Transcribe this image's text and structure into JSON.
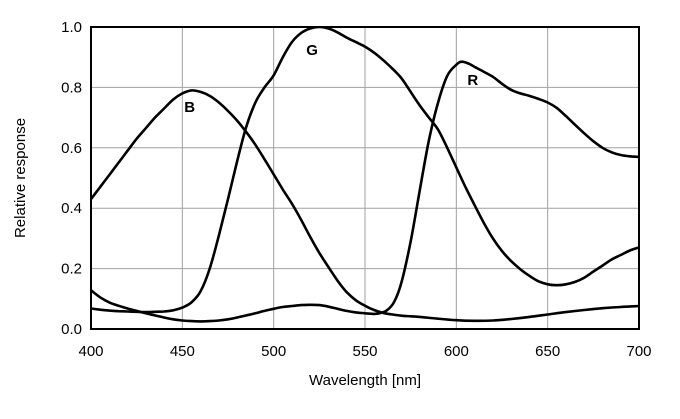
{
  "figure": {
    "background": "#ffffff",
    "frame_color": "#000000",
    "grid_color": "#a0a0a0",
    "curve_color": "#000000"
  },
  "chart_data": {
    "type": "line",
    "title": "",
    "xlabel": "Wavelength [nm]",
    "ylabel": "Relative response",
    "xlim": [
      400,
      700
    ],
    "ylim": [
      0.0,
      1.0
    ],
    "x_ticks": [
      400,
      450,
      500,
      550,
      600,
      650,
      700
    ],
    "y_ticks": [
      0.0,
      0.2,
      0.4,
      0.6,
      0.8,
      1.0
    ],
    "grid": true,
    "legend_position": "inline-curve-labels",
    "curve_labels": [
      {
        "text": "B",
        "x": 454,
        "y": 0.735
      },
      {
        "text": "G",
        "x": 521,
        "y": 0.924
      },
      {
        "text": "R",
        "x": 609,
        "y": 0.824
      }
    ],
    "series": [
      {
        "name": "B",
        "points": [
          [
            400,
            0.43
          ],
          [
            405,
            0.47
          ],
          [
            410,
            0.51
          ],
          [
            415,
            0.55
          ],
          [
            420,
            0.59
          ],
          [
            425,
            0.63
          ],
          [
            430,
            0.665
          ],
          [
            435,
            0.7
          ],
          [
            440,
            0.73
          ],
          [
            445,
            0.76
          ],
          [
            450,
            0.78
          ],
          [
            455,
            0.79
          ],
          [
            460,
            0.785
          ],
          [
            465,
            0.772
          ],
          [
            470,
            0.75
          ],
          [
            475,
            0.722
          ],
          [
            480,
            0.69
          ],
          [
            485,
            0.652
          ],
          [
            490,
            0.61
          ],
          [
            495,
            0.562
          ],
          [
            500,
            0.512
          ],
          [
            505,
            0.462
          ],
          [
            510,
            0.415
          ],
          [
            515,
            0.362
          ],
          [
            520,
            0.305
          ],
          [
            525,
            0.252
          ],
          [
            530,
            0.205
          ],
          [
            535,
            0.16
          ],
          [
            540,
            0.122
          ],
          [
            545,
            0.095
          ],
          [
            550,
            0.077
          ],
          [
            555,
            0.063
          ],
          [
            560,
            0.053
          ],
          [
            565,
            0.048
          ],
          [
            570,
            0.044
          ],
          [
            575,
            0.042
          ],
          [
            580,
            0.04
          ],
          [
            590,
            0.034
          ],
          [
            600,
            0.029
          ],
          [
            610,
            0.027
          ],
          [
            620,
            0.028
          ],
          [
            630,
            0.033
          ],
          [
            640,
            0.04
          ],
          [
            650,
            0.048
          ],
          [
            660,
            0.056
          ],
          [
            670,
            0.063
          ],
          [
            680,
            0.069
          ],
          [
            690,
            0.073
          ],
          [
            700,
            0.076
          ]
        ]
      },
      {
        "name": "G",
        "points": [
          [
            400,
            0.068
          ],
          [
            405,
            0.064
          ],
          [
            410,
            0.061
          ],
          [
            415,
            0.059
          ],
          [
            420,
            0.058
          ],
          [
            425,
            0.057
          ],
          [
            430,
            0.056
          ],
          [
            435,
            0.057
          ],
          [
            440,
            0.058
          ],
          [
            445,
            0.062
          ],
          [
            450,
            0.071
          ],
          [
            455,
            0.088
          ],
          [
            460,
            0.125
          ],
          [
            465,
            0.2
          ],
          [
            470,
            0.31
          ],
          [
            475,
            0.43
          ],
          [
            480,
            0.555
          ],
          [
            485,
            0.67
          ],
          [
            490,
            0.75
          ],
          [
            495,
            0.8
          ],
          [
            500,
            0.84
          ],
          [
            505,
            0.9
          ],
          [
            510,
            0.95
          ],
          [
            515,
            0.98
          ],
          [
            520,
            0.995
          ],
          [
            525,
            1.0
          ],
          [
            530,
            0.995
          ],
          [
            535,
            0.982
          ],
          [
            540,
            0.965
          ],
          [
            545,
            0.95
          ],
          [
            550,
            0.935
          ],
          [
            555,
            0.915
          ],
          [
            560,
            0.89
          ],
          [
            565,
            0.862
          ],
          [
            570,
            0.83
          ],
          [
            575,
            0.785
          ],
          [
            580,
            0.74
          ],
          [
            585,
            0.7
          ],
          [
            590,
            0.66
          ],
          [
            595,
            0.6
          ],
          [
            600,
            0.535
          ],
          [
            605,
            0.47
          ],
          [
            610,
            0.41
          ],
          [
            615,
            0.352
          ],
          [
            620,
            0.3
          ],
          [
            625,
            0.258
          ],
          [
            630,
            0.225
          ],
          [
            635,
            0.198
          ],
          [
            640,
            0.176
          ],
          [
            645,
            0.158
          ],
          [
            650,
            0.148
          ],
          [
            655,
            0.145
          ],
          [
            660,
            0.148
          ],
          [
            665,
            0.156
          ],
          [
            670,
            0.17
          ],
          [
            675,
            0.19
          ],
          [
            680,
            0.21
          ],
          [
            685,
            0.23
          ],
          [
            690,
            0.245
          ],
          [
            695,
            0.26
          ],
          [
            700,
            0.27
          ]
        ]
      },
      {
        "name": "R",
        "points": [
          [
            400,
            0.128
          ],
          [
            405,
            0.105
          ],
          [
            410,
            0.088
          ],
          [
            415,
            0.077
          ],
          [
            420,
            0.068
          ],
          [
            425,
            0.06
          ],
          [
            430,
            0.052
          ],
          [
            435,
            0.045
          ],
          [
            440,
            0.038
          ],
          [
            445,
            0.032
          ],
          [
            450,
            0.028
          ],
          [
            455,
            0.026
          ],
          [
            460,
            0.025
          ],
          [
            465,
            0.026
          ],
          [
            470,
            0.028
          ],
          [
            475,
            0.032
          ],
          [
            480,
            0.038
          ],
          [
            485,
            0.045
          ],
          [
            490,
            0.052
          ],
          [
            495,
            0.06
          ],
          [
            500,
            0.067
          ],
          [
            505,
            0.073
          ],
          [
            510,
            0.076
          ],
          [
            515,
            0.079
          ],
          [
            520,
            0.08
          ],
          [
            525,
            0.079
          ],
          [
            530,
            0.074
          ],
          [
            535,
            0.067
          ],
          [
            540,
            0.06
          ],
          [
            545,
            0.055
          ],
          [
            550,
            0.052
          ],
          [
            555,
            0.05
          ],
          [
            558,
            0.052
          ],
          [
            562,
            0.062
          ],
          [
            566,
            0.09
          ],
          [
            570,
            0.155
          ],
          [
            575,
            0.29
          ],
          [
            580,
            0.46
          ],
          [
            585,
            0.625
          ],
          [
            590,
            0.75
          ],
          [
            595,
            0.838
          ],
          [
            600,
            0.875
          ],
          [
            603,
            0.885
          ],
          [
            607,
            0.878
          ],
          [
            610,
            0.868
          ],
          [
            615,
            0.852
          ],
          [
            620,
            0.835
          ],
          [
            625,
            0.812
          ],
          [
            630,
            0.792
          ],
          [
            635,
            0.78
          ],
          [
            640,
            0.772
          ],
          [
            645,
            0.762
          ],
          [
            650,
            0.75
          ],
          [
            655,
            0.732
          ],
          [
            660,
            0.705
          ],
          [
            665,
            0.676
          ],
          [
            670,
            0.648
          ],
          [
            675,
            0.622
          ],
          [
            680,
            0.6
          ],
          [
            685,
            0.585
          ],
          [
            690,
            0.576
          ],
          [
            695,
            0.572
          ],
          [
            700,
            0.57
          ]
        ]
      }
    ]
  }
}
